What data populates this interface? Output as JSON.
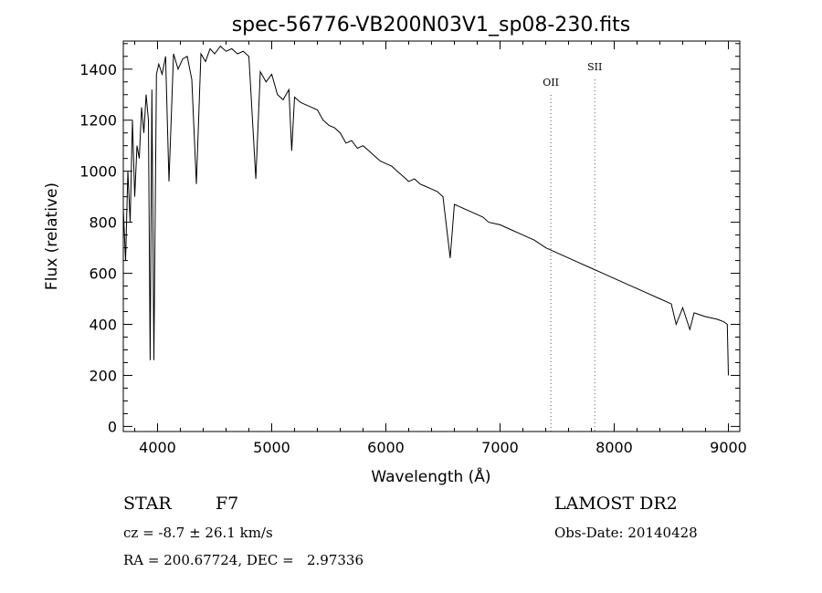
{
  "chart_data": {
    "type": "line",
    "title": "spec-56776-VB200N03V1_sp08-230.fits",
    "xlabel": "Wavelength (Å)",
    "ylabel": "Flux (relative)",
    "xlim": [
      3700,
      9100
    ],
    "ylim": [
      -20,
      1510
    ],
    "x_ticks": [
      4000,
      5000,
      6000,
      7000,
      8000,
      9000
    ],
    "y_ticks": [
      0,
      200,
      400,
      600,
      800,
      1000,
      1200,
      1400
    ],
    "grid": false,
    "series": [
      {
        "x": [
          3700,
          3720,
          3740,
          3760,
          3780,
          3800,
          3820,
          3840,
          3860,
          3880,
          3900,
          3920,
          3935,
          3950,
          3968,
          3990,
          4010,
          4040,
          4070,
          4100,
          4140,
          4180,
          4220,
          4260,
          4300,
          4340,
          4380,
          4420,
          4460,
          4500,
          4550,
          4600,
          4650,
          4700,
          4750,
          4800,
          4861,
          4900,
          4950,
          5000,
          5050,
          5100,
          5150,
          5175,
          5200,
          5250,
          5300,
          5350,
          5400,
          5450,
          5500,
          5550,
          5600,
          5650,
          5700,
          5750,
          5800,
          5850,
          5900,
          5950,
          6000,
          6050,
          6100,
          6150,
          6200,
          6250,
          6300,
          6350,
          6400,
          6450,
          6500,
          6563,
          6600,
          6650,
          6700,
          6750,
          6800,
          6850,
          6900,
          6950,
          7000,
          7100,
          7200,
          7300,
          7400,
          7500,
          7600,
          7700,
          7800,
          7900,
          8000,
          8100,
          8200,
          8300,
          8400,
          8500,
          8542,
          8600,
          8662,
          8700,
          8800,
          8900,
          8960,
          8990,
          9000
        ],
        "y": [
          850,
          650,
          1000,
          800,
          1200,
          900,
          1100,
          1050,
          1250,
          1150,
          1300,
          1200,
          260,
          1320,
          260,
          1380,
          1420,
          1380,
          1450,
          960,
          1460,
          1400,
          1440,
          1450,
          1360,
          950,
          1460,
          1430,
          1480,
          1460,
          1490,
          1470,
          1480,
          1460,
          1470,
          1450,
          970,
          1390,
          1350,
          1380,
          1300,
          1280,
          1320,
          1080,
          1290,
          1270,
          1260,
          1250,
          1240,
          1200,
          1180,
          1170,
          1150,
          1110,
          1120,
          1090,
          1100,
          1080,
          1060,
          1040,
          1030,
          1020,
          1000,
          980,
          960,
          970,
          950,
          940,
          930,
          920,
          900,
          660,
          870,
          860,
          850,
          840,
          830,
          820,
          800,
          795,
          790,
          770,
          750,
          730,
          700,
          680,
          660,
          640,
          620,
          600,
          580,
          560,
          540,
          520,
          500,
          480,
          400,
          465,
          380,
          445,
          430,
          420,
          410,
          400,
          200
        ]
      }
    ],
    "annotations": [
      {
        "label": "OII",
        "x": 7445,
        "label_y": 1335
      },
      {
        "label": "SII",
        "x": 7830,
        "label_y": 1395
      }
    ]
  },
  "info": {
    "object_type": "STAR",
    "subclass": "F7",
    "survey": "LAMOST DR2",
    "velocity": "cz = -8.7 ± 26.1 km/s",
    "obs_date": "Obs-Date: 20140428",
    "coords": "RA = 200.67724, DEC =   2.97336"
  }
}
